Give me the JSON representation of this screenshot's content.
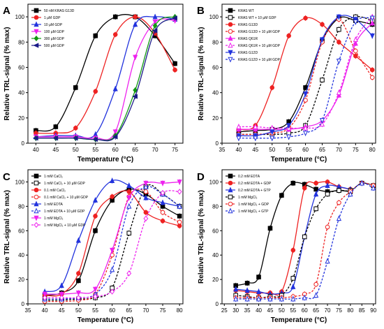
{
  "chart_data": [
    {
      "panel": "A",
      "type": "line",
      "xlabel": "Temperature (°C)",
      "ylabel": "Relative TRL-signal (% max)",
      "xlim": [
        38,
        77
      ],
      "ylim": [
        0,
        110
      ],
      "xticks": [
        40,
        45,
        50,
        55,
        60,
        65,
        70,
        75
      ],
      "yticks": [
        0,
        20,
        40,
        60,
        80,
        100
      ],
      "legend_position": "top-left",
      "series": [
        {
          "name": "50 nM KRAS G13D",
          "color": "#000000",
          "marker": "square",
          "filled": true,
          "dashed": false,
          "x": [
            40,
            45,
            50,
            55,
            60,
            65,
            70,
            75
          ],
          "y": [
            10,
            13,
            44,
            85,
            100,
            100,
            85,
            63
          ]
        },
        {
          "name": "1 µM GDP",
          "color": "#ee2222",
          "marker": "circle",
          "filled": true,
          "dashed": false,
          "x": [
            40,
            45,
            50,
            55,
            60,
            65,
            70,
            75
          ],
          "y": [
            8,
            8,
            12,
            41,
            86,
            100,
            87,
            58
          ]
        },
        {
          "name": "10 µM GDP",
          "color": "#2233dd",
          "marker": "triangle",
          "filled": true,
          "dashed": false,
          "x": [
            40,
            45,
            50,
            55,
            60,
            65,
            70,
            75
          ],
          "y": [
            5,
            6,
            6,
            7,
            43,
            94,
            100,
            98
          ]
        },
        {
          "name": "100 µM GDP",
          "color": "#ee22ee",
          "marker": "down-triangle",
          "filled": true,
          "dashed": false,
          "x": [
            40,
            45,
            50,
            55,
            60,
            65,
            70,
            75
          ],
          "y": [
            5,
            5,
            5,
            4,
            9,
            68,
            96,
            97
          ]
        },
        {
          "name": "300 µM GDP",
          "color": "#119911",
          "marker": "diamond",
          "filled": true,
          "dashed": false,
          "x": [
            40,
            45,
            50,
            55,
            60,
            65,
            70,
            75
          ],
          "y": [
            4,
            4,
            4,
            3,
            6,
            42,
            93,
            100
          ]
        },
        {
          "name": "500 µM GDP",
          "color": "#1a1a88",
          "marker": "left-triangle",
          "filled": true,
          "dashed": false,
          "x": [
            40,
            45,
            50,
            55,
            60,
            65,
            70,
            75
          ],
          "y": [
            4,
            4,
            4,
            3,
            5,
            37,
            89,
            99
          ]
        }
      ]
    },
    {
      "panel": "B",
      "type": "line",
      "xlabel": "Temperature (°C)",
      "ylabel": "Relative TRL-signal (% max)",
      "xlim": [
        35,
        81
      ],
      "ylim": [
        0,
        110
      ],
      "xticks": [
        35,
        40,
        45,
        50,
        55,
        60,
        65,
        70,
        75,
        80
      ],
      "yticks": [
        0,
        20,
        40,
        60,
        80,
        100
      ],
      "legend_position": "top-left",
      "series": [
        {
          "name": "KRAS WT",
          "color": "#000000",
          "marker": "square",
          "filled": true,
          "dashed": false,
          "x": [
            40,
            45,
            50,
            55,
            60,
            65,
            70,
            75,
            80
          ],
          "y": [
            9,
            10,
            11,
            17,
            44,
            81,
            99,
            97,
            94
          ]
        },
        {
          "name": "KRAS WT + 10 µM GDP",
          "color": "#000000",
          "marker": "square",
          "filled": false,
          "dashed": true,
          "x": [
            40,
            45,
            50,
            55,
            60,
            65,
            70,
            75,
            80
          ],
          "y": [
            7,
            7,
            7,
            8,
            14,
            50,
            90,
            100,
            97
          ]
        },
        {
          "name": "KRAS G13D",
          "color": "#ee2222",
          "marker": "circle",
          "filled": true,
          "dashed": false,
          "x": [
            40,
            45,
            50,
            55,
            60,
            65,
            70,
            75,
            80
          ],
          "y": [
            11,
            14,
            44,
            85,
            99,
            94,
            80,
            69,
            58
          ]
        },
        {
          "name": "KRAS G13D + 10 µM GDP",
          "color": "#ee2222",
          "marker": "circle",
          "filled": false,
          "dashed": true,
          "x": [
            40,
            45,
            50,
            55,
            60,
            65,
            70,
            75,
            80
          ],
          "y": [
            7,
            7,
            8,
            12,
            34,
            80,
            98,
            73,
            52
          ]
        },
        {
          "name": "KRAS Q61R",
          "color": "#ee22ee",
          "marker": "triangle",
          "filled": true,
          "dashed": false,
          "x": [
            40,
            45,
            50,
            55,
            60,
            65,
            70,
            75,
            80
          ],
          "y": [
            11,
            11,
            11,
            11,
            13,
            18,
            38,
            79,
            95
          ]
        },
        {
          "name": "KRAS Q61R + 10 µM GDP",
          "color": "#ee22ee",
          "marker": "triangle",
          "filled": false,
          "dashed": true,
          "x": [
            40,
            45,
            50,
            55,
            60,
            65,
            70,
            75,
            80
          ],
          "y": [
            13,
            13,
            12,
            12,
            12,
            15,
            40,
            82,
            100
          ]
        },
        {
          "name": "KRAS G12D",
          "color": "#2233dd",
          "marker": "down-triangle",
          "filled": true,
          "dashed": false,
          "x": [
            40,
            45,
            50,
            55,
            60,
            65,
            70,
            75,
            80
          ],
          "y": [
            6,
            6,
            9,
            14,
            39,
            82,
            100,
            98,
            85
          ]
        },
        {
          "name": "KRAS G12D + 10 µM GDP",
          "color": "#2233dd",
          "marker": "down-triangle",
          "filled": false,
          "dashed": true,
          "x": [
            40,
            45,
            50,
            55,
            60,
            65,
            70,
            75,
            80
          ],
          "y": [
            4,
            4,
            4,
            5,
            8,
            18,
            65,
            96,
            99
          ]
        }
      ]
    },
    {
      "panel": "C",
      "type": "line",
      "xlabel": "Temperature (°C)",
      "ylabel": "Relative TRL-signal (% max)",
      "xlim": [
        35,
        81
      ],
      "ylim": [
        0,
        110
      ],
      "xticks": [
        35,
        40,
        45,
        50,
        55,
        60,
        65,
        70,
        75,
        80
      ],
      "yticks": [
        0,
        20,
        40,
        60,
        80,
        100
      ],
      "legend_position": "top-left",
      "series": [
        {
          "name": "1 mM CaCl₂",
          "color": "#000000",
          "marker": "square",
          "filled": true,
          "dashed": false,
          "x": [
            40,
            45,
            50,
            55,
            60,
            65,
            70,
            75,
            80
          ],
          "y": [
            7,
            9,
            19,
            60,
            85,
            94,
            90,
            80,
            72
          ]
        },
        {
          "name": "1 mM CaCl₂ + 10 µM GDP",
          "color": "#000000",
          "marker": "square",
          "filled": false,
          "dashed": true,
          "x": [
            40,
            45,
            50,
            55,
            60,
            65,
            70,
            75,
            80
          ],
          "y": [
            3,
            3,
            4,
            5,
            13,
            58,
            96,
            90,
            80
          ]
        },
        {
          "name": "0.1 mM CaCl₂",
          "color": "#ee2222",
          "marker": "circle",
          "filled": true,
          "dashed": false,
          "x": [
            40,
            45,
            50,
            55,
            60,
            65,
            70,
            75,
            80
          ],
          "y": [
            7,
            8,
            25,
            72,
            88,
            92,
            75,
            68,
            64
          ]
        },
        {
          "name": "0.1 mM CaCl₂ + 10 µM GDP",
          "color": "#ee2222",
          "marker": "circle",
          "filled": false,
          "dashed": true,
          "x": [
            40,
            45,
            50,
            55,
            60,
            65,
            70,
            75,
            80
          ],
          "y": [
            2,
            2,
            3,
            8,
            40,
            88,
            92,
            75,
            67
          ]
        },
        {
          "name": "1 mM EDTA",
          "color": "#2233dd",
          "marker": "triangle",
          "filled": true,
          "dashed": false,
          "x": [
            40,
            45,
            50,
            55,
            60,
            65,
            70,
            75,
            80
          ],
          "y": [
            10,
            15,
            52,
            85,
            101,
            97,
            87,
            83,
            80
          ]
        },
        {
          "name": "1 mM EDTA + 10 µM GDP",
          "color": "#2233dd",
          "marker": "triangle",
          "filled": false,
          "dashed": true,
          "x": [
            40,
            45,
            50,
            55,
            60,
            65,
            70,
            75,
            80
          ],
          "y": [
            4,
            4,
            5,
            8,
            28,
            80,
            96,
            90,
            80
          ]
        },
        {
          "name": "1 mM MgCl₂",
          "color": "#ee22ee",
          "marker": "down-triangle",
          "filled": true,
          "dashed": false,
          "x": [
            40,
            45,
            50,
            55,
            60,
            65,
            70,
            75,
            80
          ],
          "y": [
            8,
            8,
            9,
            12,
            44,
            87,
            99,
            99,
            100
          ]
        },
        {
          "name": "1 mM MgCl₂ + 10 µM GDP",
          "color": "#ee22ee",
          "marker": "diamond",
          "filled": false,
          "dashed": true,
          "x": [
            40,
            45,
            50,
            55,
            60,
            65,
            70,
            75,
            80
          ],
          "y": [
            5,
            5,
            5,
            6,
            10,
            25,
            70,
            91,
            92
          ]
        }
      ]
    },
    {
      "panel": "D",
      "type": "line",
      "xlabel": "Temperature (°C)",
      "ylabel": "Relative TRL-signal (% max)",
      "xlim": [
        24,
        91
      ],
      "ylim": [
        0,
        110
      ],
      "xticks": [
        25,
        30,
        35,
        40,
        45,
        50,
        55,
        60,
        65,
        70,
        75,
        80,
        85,
        90
      ],
      "yticks": [
        0,
        20,
        40,
        60,
        80,
        100
      ],
      "legend_position": "top-left",
      "series": [
        {
          "name": "0.2 mM EDTA",
          "color": "#000000",
          "marker": "square",
          "filled": true,
          "dashed": false,
          "x": [
            30,
            35,
            40,
            45,
            50,
            55,
            60,
            65,
            70,
            75,
            80
          ],
          "y": [
            15,
            17,
            22,
            62,
            89,
            99,
            98,
            94,
            92,
            93,
            92
          ]
        },
        {
          "name": "0.2 mM EDTA + GDP",
          "color": "#ee2222",
          "marker": "circle",
          "filled": true,
          "dashed": false,
          "x": [
            30,
            35,
            40,
            45,
            50,
            55,
            60,
            65,
            70,
            75,
            80
          ],
          "y": [
            11,
            10,
            9,
            9,
            10,
            44,
            95,
            99,
            100,
            96,
            94
          ]
        },
        {
          "name": "0.2 mM EDTA + GTP",
          "color": "#2233dd",
          "marker": "triangle",
          "filled": true,
          "dashed": false,
          "x": [
            30,
            35,
            40,
            45,
            50,
            55,
            60,
            65,
            70,
            75,
            80
          ],
          "y": [
            12,
            11,
            10,
            8,
            9,
            14,
            55,
            90,
            97,
            96,
            94
          ]
        },
        {
          "name": "1 mM MgCl₂",
          "color": "#000000",
          "marker": "square",
          "filled": false,
          "dashed": true,
          "x": [
            30,
            35,
            40,
            45,
            50,
            55,
            60,
            65,
            70,
            75,
            80,
            85,
            90
          ],
          "y": [
            7,
            6,
            5,
            6,
            7,
            21,
            55,
            78,
            90,
            93,
            93,
            99,
            97
          ]
        },
        {
          "name": "1 mM MgCl₂ + GDP",
          "color": "#ee2222",
          "marker": "circle",
          "filled": false,
          "dashed": true,
          "x": [
            30,
            35,
            40,
            45,
            50,
            55,
            60,
            65,
            70,
            75,
            80,
            85,
            90
          ],
          "y": [
            5,
            5,
            5,
            5,
            5,
            6,
            8,
            16,
            63,
            83,
            92,
            99,
            97
          ]
        },
        {
          "name": "1 mM MgCl₂ + GTP",
          "color": "#2233dd",
          "marker": "triangle",
          "filled": false,
          "dashed": true,
          "x": [
            30,
            35,
            40,
            45,
            50,
            55,
            60,
            65,
            70,
            75,
            80,
            85,
            90
          ],
          "y": [
            4,
            4,
            4,
            4,
            4,
            4,
            5,
            7,
            35,
            70,
            90,
            99,
            95
          ]
        }
      ]
    }
  ]
}
